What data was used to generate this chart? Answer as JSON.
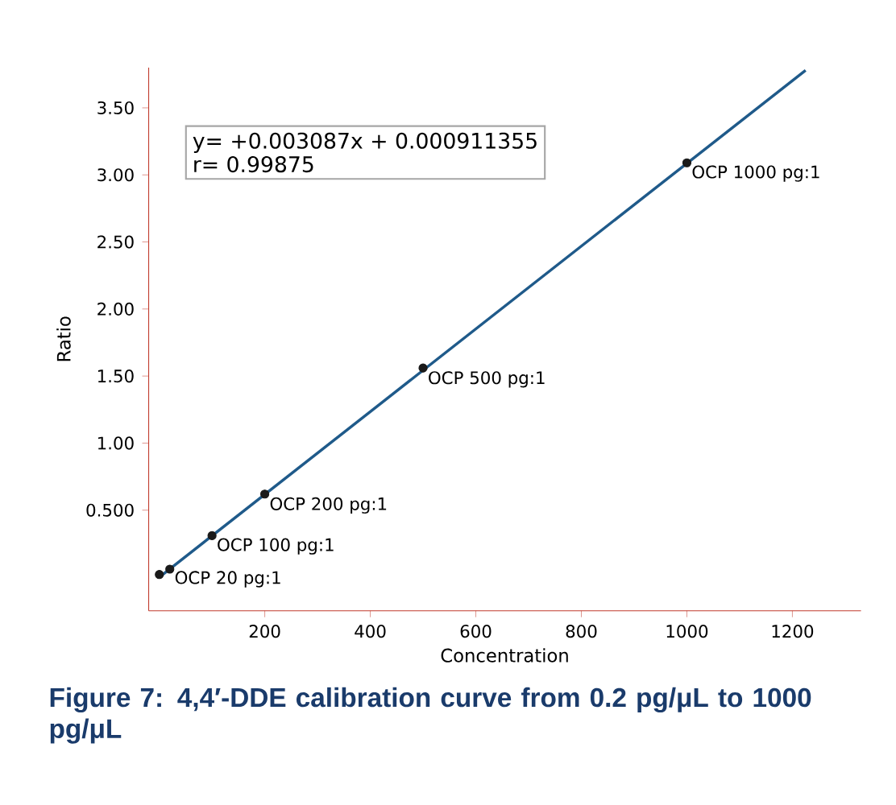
{
  "chart_data": {
    "type": "scatter",
    "xlabel": "Concentration",
    "ylabel": "Ratio",
    "xlim": [
      -20,
      1330
    ],
    "ylim": [
      -0.25,
      3.8
    ],
    "xticks": [
      200,
      400,
      600,
      800,
      1000,
      1200
    ],
    "yticks": [
      {
        "value": 0.5,
        "label": "0.500"
      },
      {
        "value": 1.0,
        "label": "1.00"
      },
      {
        "value": 1.5,
        "label": "1.50"
      },
      {
        "value": 2.0,
        "label": "2.00"
      },
      {
        "value": 2.5,
        "label": "2.50"
      },
      {
        "value": 3.0,
        "label": "3.00"
      },
      {
        "value": 3.5,
        "label": "3.50"
      }
    ],
    "grid": false,
    "series": [
      {
        "type": "line",
        "marker": "none",
        "color": "#1f5a8a",
        "x": [
          0,
          1225
        ],
        "values": [
          0,
          3.78
        ]
      },
      {
        "marker": "circle",
        "color": "#1a1a1a",
        "x": [
          0.2,
          20,
          100,
          200,
          500,
          1000
        ],
        "values": [
          0.02,
          0.06,
          0.31,
          0.62,
          1.56,
          3.09
        ]
      }
    ],
    "annotations": [
      {
        "text": "OCP 20 pg:1",
        "x": 20,
        "y": 0.065
      },
      {
        "text": "OCP 100 pg:1",
        "x": 100,
        "y": 0.31
      },
      {
        "text": "OCP 200 pg:1",
        "x": 200,
        "y": 0.615
      },
      {
        "text": "OCP 500 pg:1",
        "x": 500,
        "y": 1.555
      },
      {
        "text": "OCP 1000 pg:1",
        "x": 1000,
        "y": 3.09
      },
      "y= +0.003087x + 0.000911355",
      "r= 0.99875",
      "Figure 7: 4,4′-DDE calibration curve from 0.2 pg/μL to 1000 pg/μL"
    ]
  }
}
